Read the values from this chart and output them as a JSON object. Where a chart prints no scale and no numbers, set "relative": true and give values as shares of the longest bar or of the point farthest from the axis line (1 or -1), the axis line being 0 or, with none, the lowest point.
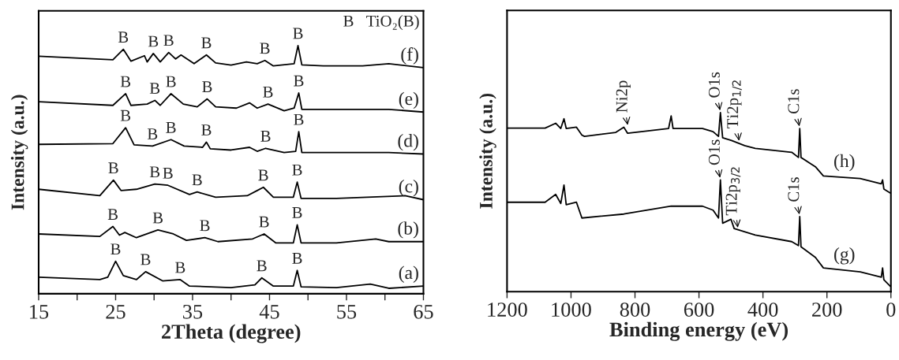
{
  "chart_data": [
    {
      "type": "line",
      "relative": true,
      "xlabel": "2Theta (degree)",
      "ylabel": "Intensity (a.u.)",
      "tick_labels": "x",
      "xlim": [
        15,
        65
      ],
      "xticks": [
        15,
        {
          "value": 20,
          "label": null
        },
        25,
        {
          "value": 30,
          "label": null
        },
        35,
        {
          "value": 40,
          "label": null
        },
        45,
        {
          "value": 50,
          "label": null
        },
        55,
        {
          "value": 60,
          "label": null
        },
        65
      ],
      "series": [
        {
          "name": "(a)",
          "color": "#000000",
          "x": [
            15,
            22.95,
            23.98,
            25.0,
            26.0,
            27.7,
            28.9,
            31.1,
            33.4,
            34.6,
            40.0,
            43.1,
            44.0,
            45.5,
            48.1,
            48.6,
            49.1,
            53.7,
            58.1,
            60.5,
            65
          ],
          "values": [
            0.067,
            0.057,
            0.067,
            0.131,
            0.073,
            0.057,
            0.089,
            0.052,
            0.057,
            0.031,
            0.025,
            0.036,
            0.064,
            0.031,
            0.031,
            0.094,
            0.028,
            0.025,
            0.039,
            0.022,
            0.031
          ]
        },
        {
          "name": "(b)",
          "color": "#000000",
          "x": [
            15,
            22.95,
            24.65,
            25.5,
            26.2,
            27.7,
            30.5,
            32.5,
            34.2,
            36.6,
            38.3,
            42.8,
            44.3,
            45.8,
            48.1,
            48.6,
            49.1,
            53.7,
            58.8,
            60.5,
            65
          ],
          "values": [
            0.241,
            0.231,
            0.271,
            0.236,
            0.247,
            0.226,
            0.257,
            0.241,
            0.215,
            0.226,
            0.21,
            0.221,
            0.241,
            0.205,
            0.205,
            0.278,
            0.205,
            0.205,
            0.221,
            0.21,
            0.21
          ]
        },
        {
          "name": "(c)",
          "color": "#000000",
          "x": [
            15,
            22.95,
            24.72,
            25.7,
            27.7,
            30.1,
            31.8,
            34.6,
            35.6,
            38.0,
            42.1,
            43.4,
            44.2,
            45.5,
            48.1,
            48.6,
            49.1,
            53.7,
            62.6,
            65
          ],
          "values": [
            0.421,
            0.395,
            0.458,
            0.416,
            0.421,
            0.442,
            0.437,
            0.4,
            0.41,
            0.389,
            0.395,
            0.416,
            0.429,
            0.389,
            0.389,
            0.45,
            0.384,
            0.384,
            0.395,
            0.379
          ]
        },
        {
          "name": "(d)",
          "color": "#000000",
          "x": [
            15,
            24.65,
            26.3,
            27.4,
            29.8,
            32.2,
            33.9,
            36.3,
            36.8,
            37.3,
            40.0,
            42.4,
            43.4,
            44.5,
            46.9,
            48.4,
            48.8,
            49.2,
            53.7,
            60.5,
            65
          ],
          "values": [
            0.602,
            0.605,
            0.669,
            0.6,
            0.595,
            0.621,
            0.595,
            0.59,
            0.611,
            0.584,
            0.579,
            0.59,
            0.574,
            0.586,
            0.569,
            0.574,
            0.653,
            0.569,
            0.569,
            0.569,
            0.563
          ]
        },
        {
          "name": "(e)",
          "color": "#000000",
          "x": [
            15,
            24.65,
            26.3,
            27.0,
            29.1,
            30.1,
            30.8,
            32.2,
            33.8,
            35.6,
            36.9,
            38.0,
            40.7,
            42.4,
            43.4,
            44.8,
            46.9,
            48.2,
            48.8,
            49.2,
            53.7,
            60.5,
            65
          ],
          "values": [
            0.774,
            0.759,
            0.806,
            0.759,
            0.764,
            0.779,
            0.759,
            0.806,
            0.764,
            0.753,
            0.785,
            0.753,
            0.748,
            0.769,
            0.748,
            0.764,
            0.737,
            0.748,
            0.809,
            0.743,
            0.743,
            0.743,
            0.732
          ]
        },
        {
          "name": "(f)",
          "color": "#000000",
          "x": [
            15,
            24.65,
            26.0,
            27.0,
            28.75,
            29.1,
            29.9,
            30.8,
            31.9,
            32.8,
            33.5,
            35.2,
            36.8,
            38.0,
            40.0,
            42.0,
            43.4,
            44.4,
            45.5,
            48.2,
            48.7,
            49.2,
            52.0,
            57.1,
            60.5,
            65
          ],
          "values": [
            0.957,
            0.943,
            0.985,
            0.937,
            0.959,
            0.934,
            0.968,
            0.934,
            0.972,
            0.946,
            0.962,
            0.927,
            0.962,
            0.93,
            0.921,
            0.934,
            0.927,
            0.94,
            0.918,
            0.927,
            1.0,
            0.922,
            0.918,
            0.918,
            0.927,
            0.911
          ]
        }
      ],
      "annotations": [
        {
          "text": "B",
          "x": 25.0,
          "y": 0.131
        },
        {
          "text": "B",
          "x": 28.9,
          "y": 0.089
        },
        {
          "text": "B",
          "x": 33.4,
          "y": 0.057
        },
        {
          "text": "B",
          "x": 44.0,
          "y": 0.064
        },
        {
          "text": "B",
          "x": 48.6,
          "y": 0.094
        },
        {
          "text": "B",
          "x": 24.65,
          "y": 0.271
        },
        {
          "text": "B",
          "x": 30.5,
          "y": 0.257
        },
        {
          "text": "B",
          "x": 36.6,
          "y": 0.226
        },
        {
          "text": "B",
          "x": 44.3,
          "y": 0.241
        },
        {
          "text": "B",
          "x": 48.6,
          "y": 0.278
        },
        {
          "text": "B",
          "x": 24.72,
          "y": 0.458
        },
        {
          "text": "B",
          "x": 30.1,
          "y": 0.442
        },
        {
          "text": "B",
          "x": 31.8,
          "y": 0.437
        },
        {
          "text": "B",
          "x": 35.6,
          "y": 0.41
        },
        {
          "text": "B",
          "x": 44.2,
          "y": 0.429
        },
        {
          "text": "B",
          "x": 48.6,
          "y": 0.45
        },
        {
          "text": "B",
          "x": 26.3,
          "y": 0.669
        },
        {
          "text": "B",
          "x": 29.8,
          "y": 0.595
        },
        {
          "text": "B",
          "x": 32.2,
          "y": 0.621
        },
        {
          "text": "B",
          "x": 36.8,
          "y": 0.611
        },
        {
          "text": "B",
          "x": 44.5,
          "y": 0.586
        },
        {
          "text": "B",
          "x": 48.8,
          "y": 0.653
        },
        {
          "text": "B",
          "x": 26.3,
          "y": 0.806
        },
        {
          "text": "B",
          "x": 30.1,
          "y": 0.779
        },
        {
          "text": "B",
          "x": 32.2,
          "y": 0.806
        },
        {
          "text": "B",
          "x": 36.9,
          "y": 0.785
        },
        {
          "text": "B",
          "x": 44.8,
          "y": 0.764
        },
        {
          "text": "B",
          "x": 48.8,
          "y": 0.809
        },
        {
          "text": "B",
          "x": 26.0,
          "y": 0.985
        },
        {
          "text": "B",
          "x": 29.9,
          "y": 0.968
        },
        {
          "text": "B",
          "x": 31.9,
          "y": 0.972
        },
        {
          "text": "B",
          "x": 36.8,
          "y": 0.962
        },
        {
          "text": "B",
          "x": 44.4,
          "y": 0.94
        },
        {
          "text": "B",
          "x": 48.7,
          "y": 1.0
        },
        "B   TiO₂(B)"
      ]
    },
    {
      "type": "line",
      "relative": true,
      "xlabel": "Binding energy (eV)",
      "ylabel": "Intensity (a.u.)",
      "tick_labels": "x",
      "xlim": [
        1200,
        0
      ],
      "xticks": [
        1200,
        1000,
        800,
        600,
        400,
        200,
        0
      ],
      "series": [
        {
          "name": "(g)",
          "color": "#000000",
          "x": [
            1200,
            1081,
            1048,
            1032,
            1022,
            1015,
            983,
            966,
            835,
            687,
            589,
            556,
            539,
            533,
            526,
            500,
            490,
            424,
            310,
            289,
            285,
            281,
            236,
            211,
            96,
            30,
            26,
            22,
            2
          ],
          "values": [
            0.499,
            0.499,
            0.543,
            0.492,
            0.595,
            0.485,
            0.499,
            0.411,
            0.433,
            0.477,
            0.477,
            0.455,
            0.411,
            0.624,
            0.382,
            0.404,
            0.352,
            0.316,
            0.279,
            0.257,
            0.419,
            0.25,
            0.191,
            0.132,
            0.11,
            0.081,
            0.132,
            0.066,
            0.03
          ]
        },
        {
          "name": "(h)",
          "color": "#000000",
          "x": [
            1200,
            1081,
            1048,
            1032,
            1022,
            1015,
            983,
            966,
            958,
            860,
            835,
            823,
            695,
            687,
            681,
            589,
            556,
            539,
            533,
            526,
            498,
            457,
            424,
            310,
            289,
            285,
            281,
            236,
            211,
            96,
            30,
            26,
            22,
            2
          ],
          "values": [
            0.913,
            0.913,
            0.94,
            0.911,
            0.965,
            0.911,
            0.918,
            0.874,
            0.867,
            0.889,
            0.918,
            0.884,
            0.911,
            0.981,
            0.911,
            0.911,
            0.893,
            0.867,
            1.0,
            0.859,
            0.844,
            0.815,
            0.8,
            0.778,
            0.749,
            0.911,
            0.749,
            0.697,
            0.646,
            0.631,
            0.602,
            0.624,
            0.573,
            0.551
          ]
        }
      ],
      "annotations": [
        {
          "text": "Ni2p",
          "x": 822,
          "y": 0.918
        },
        {
          "text": "O1s",
          "x": 533,
          "y": 1.0
        },
        {
          "text": "Ti2p$_{1/2}$",
          "x": 474,
          "y": 0.83
        },
        {
          "text": "Ti2p$_{3/2}$",
          "x": 478,
          "y": 0.345
        },
        {
          "text": "C1s",
          "x": 285,
          "y": 0.911
        },
        {
          "text": "O1s",
          "x": 533,
          "y": 0.624
        },
        {
          "text": "C1s",
          "x": 285,
          "y": 0.419
        }
      ]
    }
  ]
}
